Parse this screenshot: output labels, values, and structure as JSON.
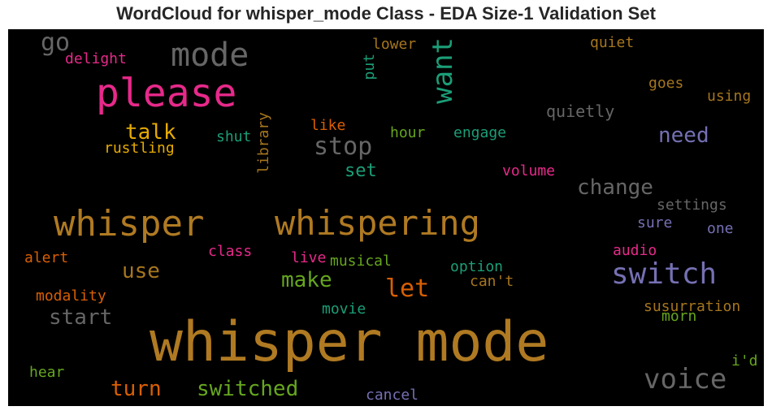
{
  "title": "WordCloud for whisper_mode Class - EDA Size-1 Validation Set",
  "words": [
    {
      "text": "whisper mode",
      "color": "#b07a22"
    },
    {
      "text": "whisper",
      "color": "#b07a22"
    },
    {
      "text": "whispering",
      "color": "#b07a22"
    },
    {
      "text": "please",
      "color": "#e7298a"
    },
    {
      "text": "mode",
      "color": "#666666"
    },
    {
      "text": "switch",
      "color": "#7570b3"
    },
    {
      "text": "voice",
      "color": "#666666"
    },
    {
      "text": "want",
      "color": "#1b9e77"
    },
    {
      "text": "stop",
      "color": "#666666"
    },
    {
      "text": "let",
      "color": "#d95f02"
    },
    {
      "text": "change",
      "color": "#666666"
    },
    {
      "text": "need",
      "color": "#7570b3"
    },
    {
      "text": "talk",
      "color": "#e6ab02"
    },
    {
      "text": "go",
      "color": "#666666"
    },
    {
      "text": "use",
      "color": "#a6761d"
    },
    {
      "text": "make",
      "color": "#66a61e"
    },
    {
      "text": "start",
      "color": "#666666"
    },
    {
      "text": "turn",
      "color": "#d95f02"
    },
    {
      "text": "switched",
      "color": "#66a61e"
    },
    {
      "text": "set",
      "color": "#1b9e77"
    },
    {
      "text": "delight",
      "color": "#e7298a"
    },
    {
      "text": "lower",
      "color": "#a6761d"
    },
    {
      "text": "put",
      "color": "#1b9e77"
    },
    {
      "text": "quiet",
      "color": "#a6761d"
    },
    {
      "text": "goes",
      "color": "#a6761d"
    },
    {
      "text": "using",
      "color": "#a6761d"
    },
    {
      "text": "quietly",
      "color": "#666666"
    },
    {
      "text": "library",
      "color": "#a6761d"
    },
    {
      "text": "like",
      "color": "#d95f02"
    },
    {
      "text": "hour",
      "color": "#66a61e"
    },
    {
      "text": "engage",
      "color": "#1b9e77"
    },
    {
      "text": "shut",
      "color": "#1b9e77"
    },
    {
      "text": "rustling",
      "color": "#e6ab02"
    },
    {
      "text": "volume",
      "color": "#e7298a"
    },
    {
      "text": "settings",
      "color": "#666666"
    },
    {
      "text": "sure",
      "color": "#7570b3"
    },
    {
      "text": "one",
      "color": "#7570b3"
    },
    {
      "text": "audio",
      "color": "#e7298a"
    },
    {
      "text": "alert",
      "color": "#d95f02"
    },
    {
      "text": "class",
      "color": "#e7298a"
    },
    {
      "text": "live",
      "color": "#e7298a"
    },
    {
      "text": "musical",
      "color": "#66a61e"
    },
    {
      "text": "option",
      "color": "#1b9e77"
    },
    {
      "text": "can't",
      "color": "#a6761d"
    },
    {
      "text": "modality",
      "color": "#d95f02"
    },
    {
      "text": "movie",
      "color": "#1b9e77"
    },
    {
      "text": "susurration",
      "color": "#a6761d"
    },
    {
      "text": "morn",
      "color": "#66a61e"
    },
    {
      "text": "i'd",
      "color": "#66a61e"
    },
    {
      "text": "hear",
      "color": "#66a61e"
    },
    {
      "text": "cancel",
      "color": "#7570b3"
    }
  ]
}
